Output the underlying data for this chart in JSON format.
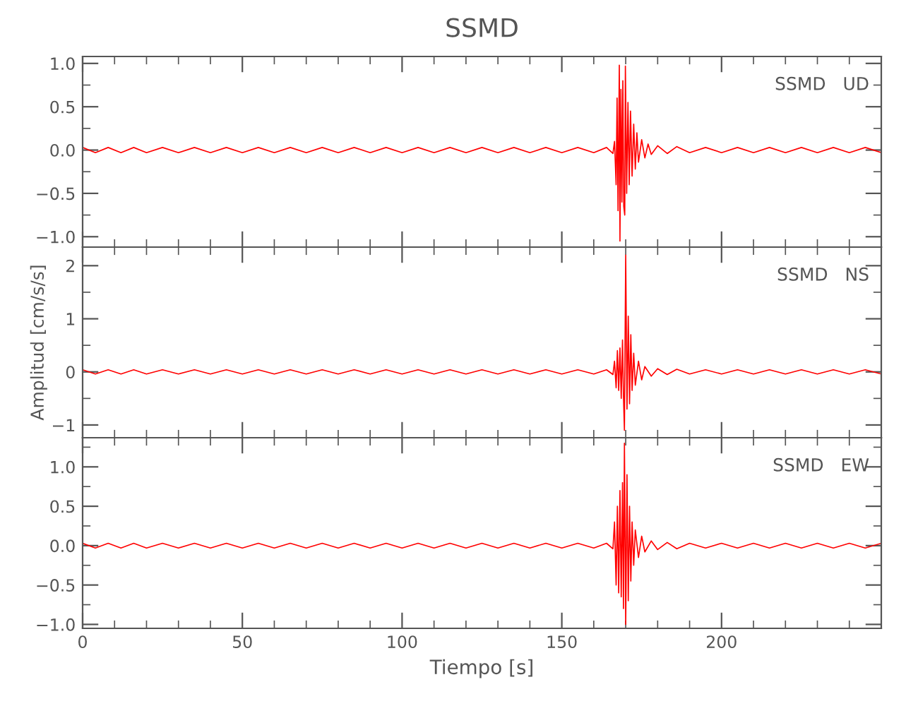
{
  "chart_data": [
    {
      "type": "line",
      "title": "SSMD",
      "annotations": [
        "SSMD   UD"
      ],
      "xlim": [
        0,
        250
      ],
      "xticks": [
        0,
        50,
        100,
        150,
        200
      ],
      "ylim": [
        -1.12,
        1.08
      ],
      "yticks": [
        {
          "value": 1.0,
          "label": "1.0"
        },
        {
          "value": 0.5,
          "label": "0.5"
        },
        {
          "value": 0.0,
          "label": "0.0"
        },
        {
          "value": -0.5,
          "label": "−0.5"
        },
        {
          "value": -1.0,
          "label": "−1.0"
        }
      ],
      "tick_labels": "y",
      "grid": false,
      "legend": false,
      "series": [
        {
          "color": "#ff0000",
          "x": [
            0,
            4,
            8,
            12,
            16,
            20,
            25,
            30,
            35,
            40,
            45,
            50,
            55,
            60,
            65,
            70,
            75,
            80,
            85,
            90,
            95,
            100,
            105,
            110,
            115,
            120,
            125,
            130,
            135,
            140,
            145,
            150,
            155,
            160,
            164,
            166,
            166.5,
            167,
            167.3,
            167.6,
            168,
            168.2,
            168.5,
            168.8,
            169.1,
            169.4,
            169.7,
            169.9,
            170.3,
            170.7,
            171.1,
            171.5,
            172,
            172.5,
            173,
            173.5,
            174,
            175,
            176,
            177,
            178,
            180,
            183,
            186,
            190,
            195,
            200,
            205,
            210,
            215,
            220,
            225,
            230,
            235,
            240,
            245,
            250
          ],
          "values": [
            0.03,
            -0.03,
            0.03,
            -0.03,
            0.03,
            -0.03,
            0.03,
            -0.03,
            0.03,
            -0.03,
            0.03,
            -0.03,
            0.03,
            -0.03,
            0.03,
            -0.03,
            0.03,
            -0.03,
            0.03,
            -0.03,
            0.03,
            -0.03,
            0.03,
            -0.03,
            0.03,
            -0.03,
            0.03,
            -0.03,
            0.03,
            -0.03,
            0.03,
            -0.03,
            0.03,
            -0.03,
            0.03,
            -0.04,
            0.1,
            -0.4,
            0.6,
            -0.7,
            0.98,
            -1.05,
            0.7,
            -0.6,
            0.8,
            -0.65,
            -0.75,
            0.97,
            -0.5,
            0.55,
            -0.4,
            0.45,
            -0.3,
            0.3,
            -0.22,
            0.2,
            -0.14,
            0.12,
            -0.09,
            0.07,
            -0.05,
            0.05,
            -0.04,
            0.04,
            -0.03,
            0.03,
            -0.03,
            0.03,
            -0.03,
            0.03,
            -0.03,
            0.03,
            -0.03,
            0.03,
            -0.03,
            0.03,
            -0.03
          ]
        }
      ]
    },
    {
      "type": "line",
      "ylabel": "Amplitud [cm/s/s]",
      "annotations": [
        "SSMD   NS"
      ],
      "xlim": [
        0,
        250
      ],
      "xticks": [
        0,
        50,
        100,
        150,
        200
      ],
      "ylim": [
        -1.24,
        2.35
      ],
      "yticks": [
        {
          "value": 2,
          "label": "2"
        },
        {
          "value": 1,
          "label": "1"
        },
        {
          "value": 0,
          "label": "0"
        },
        {
          "value": -1,
          "label": "−1"
        }
      ],
      "tick_labels": "y",
      "grid": false,
      "legend": false,
      "series": [
        {
          "color": "#ff0000",
          "x": [
            0,
            4,
            8,
            12,
            16,
            20,
            25,
            30,
            35,
            40,
            45,
            50,
            55,
            60,
            65,
            70,
            75,
            80,
            85,
            90,
            95,
            100,
            105,
            110,
            115,
            120,
            125,
            130,
            135,
            140,
            145,
            150,
            155,
            160,
            164,
            166,
            166.5,
            167,
            167.4,
            167.8,
            168.2,
            168.6,
            169.0,
            169.3,
            169.6,
            170.0,
            170.4,
            170.8,
            171.2,
            171.6,
            172,
            172.5,
            173,
            174,
            175,
            176,
            178,
            180,
            183,
            186,
            190,
            195,
            200,
            205,
            210,
            215,
            220,
            225,
            230,
            235,
            240,
            245,
            250
          ],
          "values": [
            0.04,
            -0.04,
            0.04,
            -0.04,
            0.04,
            -0.04,
            0.04,
            -0.04,
            0.04,
            -0.04,
            0.04,
            -0.04,
            0.04,
            -0.04,
            0.04,
            -0.04,
            0.04,
            -0.04,
            0.04,
            -0.04,
            0.04,
            -0.04,
            0.04,
            -0.04,
            0.04,
            -0.04,
            0.04,
            -0.04,
            0.04,
            -0.04,
            0.04,
            -0.04,
            0.04,
            -0.04,
            0.04,
            -0.05,
            0.2,
            -0.3,
            0.4,
            -0.35,
            0.45,
            -0.5,
            0.6,
            -0.45,
            -1.1,
            2.2,
            -0.7,
            1.05,
            -0.6,
            0.7,
            -0.35,
            0.35,
            -0.25,
            0.2,
            -0.15,
            0.1,
            -0.08,
            0.06,
            -0.05,
            0.05,
            -0.04,
            0.04,
            -0.04,
            0.04,
            -0.04,
            0.04,
            -0.04,
            0.04,
            -0.04,
            0.04,
            -0.04,
            0.04,
            -0.04
          ]
        }
      ]
    },
    {
      "type": "line",
      "xlabel": "Tiempo [s]",
      "annotations": [
        "SSMD   EW"
      ],
      "xlim": [
        0,
        250
      ],
      "xticks": [
        0,
        50,
        100,
        150,
        200
      ],
      "ylim": [
        -1.05,
        1.37
      ],
      "yticks": [
        {
          "value": 1.0,
          "label": "1.0"
        },
        {
          "value": 0.5,
          "label": "0.5"
        },
        {
          "value": 0.0,
          "label": "0.0"
        },
        {
          "value": -0.5,
          "label": "−0.5"
        },
        {
          "value": -1.0,
          "label": "−1.0"
        }
      ],
      "grid": false,
      "legend": false,
      "series": [
        {
          "color": "#ff0000",
          "x": [
            0,
            4,
            8,
            12,
            16,
            20,
            25,
            30,
            35,
            40,
            45,
            50,
            55,
            60,
            65,
            70,
            75,
            80,
            85,
            90,
            95,
            100,
            105,
            110,
            115,
            120,
            125,
            130,
            135,
            140,
            145,
            150,
            155,
            160,
            164,
            166,
            166.5,
            167,
            167.4,
            167.8,
            168.2,
            168.6,
            169.0,
            169.3,
            169.6,
            170.0,
            170.4,
            170.8,
            171.2,
            171.6,
            172,
            172.5,
            173,
            174,
            175,
            176,
            178,
            180,
            183,
            186,
            190,
            195,
            200,
            205,
            210,
            215,
            220,
            225,
            230,
            235,
            240,
            245,
            250
          ],
          "values": [
            0.03,
            -0.03,
            0.03,
            -0.03,
            0.03,
            -0.03,
            0.03,
            -0.03,
            0.03,
            -0.03,
            0.03,
            -0.03,
            0.03,
            -0.03,
            0.03,
            -0.03,
            0.03,
            -0.03,
            0.03,
            -0.03,
            0.03,
            -0.03,
            0.03,
            -0.03,
            0.03,
            -0.03,
            0.03,
            -0.03,
            0.03,
            -0.03,
            0.03,
            -0.03,
            0.03,
            -0.03,
            0.03,
            -0.04,
            0.3,
            -0.5,
            0.5,
            -0.6,
            0.7,
            -0.65,
            0.8,
            -0.8,
            1.3,
            -1.0,
            0.9,
            -0.7,
            0.5,
            -0.45,
            0.3,
            -0.25,
            0.2,
            -0.15,
            0.12,
            -0.08,
            0.06,
            -0.05,
            0.04,
            -0.04,
            0.03,
            -0.03,
            0.03,
            -0.03,
            0.03,
            -0.03,
            0.03,
            -0.03,
            0.03,
            -0.03,
            0.03,
            -0.03,
            0.03
          ]
        }
      ]
    }
  ]
}
